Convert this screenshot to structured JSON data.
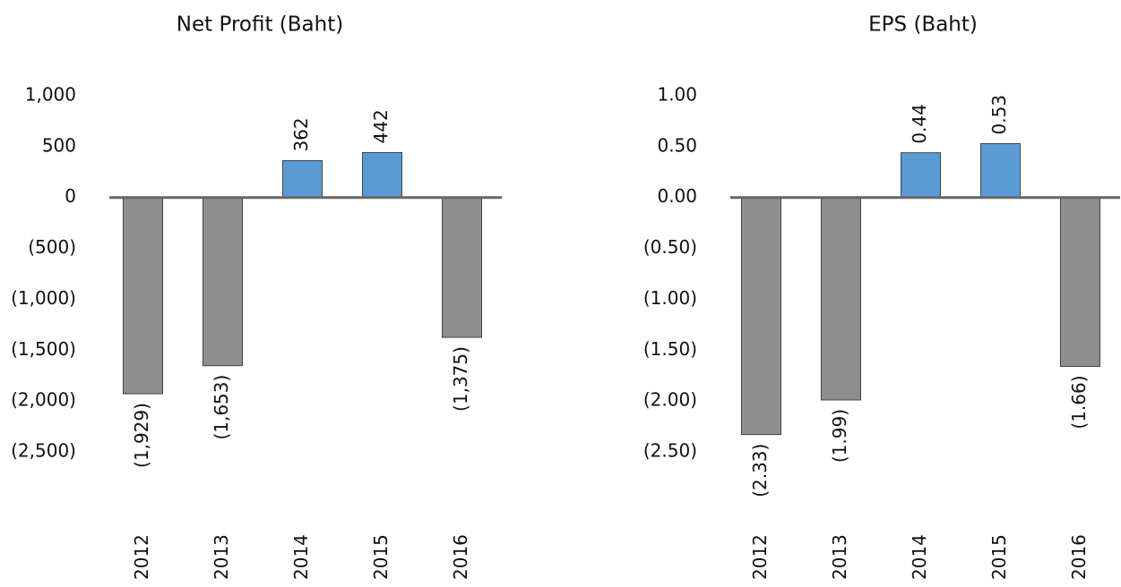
{
  "chart_data": [
    {
      "type": "bar",
      "title": "Net Profit (Baht)",
      "categories": [
        "2012",
        "2013",
        "2014",
        "2015",
        "2016"
      ],
      "values": [
        -1929,
        -1653,
        362,
        442,
        -1375
      ],
      "value_labels": [
        "(1,929)",
        "(1,653)",
        "362",
        "442",
        "(1,375)"
      ],
      "positive_color": "#5b9bd5",
      "negative_color": "#8e8e8e",
      "ylim": [
        -2500,
        1000
      ],
      "yticks": [
        {
          "value": 1000,
          "label": "1,000"
        },
        500,
        0,
        {
          "value": -500,
          "label": "(500)"
        },
        {
          "value": -1000,
          "label": "(1,000)"
        },
        {
          "value": -1500,
          "label": "(1,500)"
        },
        {
          "value": -2000,
          "label": "(2,000)"
        },
        {
          "value": -2500,
          "label": "(2,500)"
        }
      ]
    },
    {
      "type": "bar",
      "title": "EPS (Baht)",
      "categories": [
        "2012",
        "2013",
        "2014",
        "2015",
        "2016"
      ],
      "values": [
        -2.33,
        -1.99,
        0.44,
        0.53,
        -1.66
      ],
      "value_labels": [
        "(2.33)",
        "(1.99)",
        "0.44",
        "0.53",
        "(1.66)"
      ],
      "positive_color": "#5b9bd5",
      "negative_color": "#8e8e8e",
      "ylim": [
        -2.5,
        1
      ],
      "yticks": [
        {
          "value": 1,
          "label": "1.00"
        },
        {
          "value": 0.5,
          "label": "0.50"
        },
        {
          "value": 0,
          "label": "0.00"
        },
        {
          "value": -0.5,
          "label": "(0.50)"
        },
        {
          "value": -1,
          "label": "(1.00)"
        },
        {
          "value": -1.5,
          "label": "(1.50)"
        },
        {
          "value": -2,
          "label": "(2.00)"
        },
        {
          "value": -2.5,
          "label": "(2.50)"
        }
      ]
    }
  ]
}
